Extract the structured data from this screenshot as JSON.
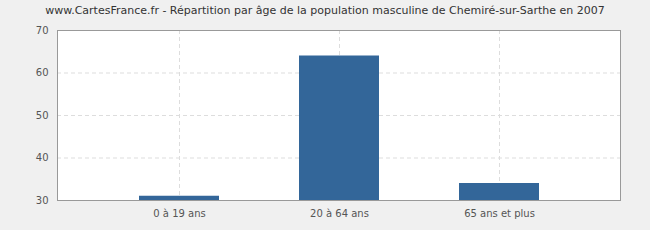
{
  "chart_data": {
    "type": "bar",
    "title": "www.CartesFrance.fr - Répartition par âge de la population masculine de Chemiré-sur-Sarthe en 2007",
    "categories": [
      "0 à 19 ans",
      "20 à 64 ans",
      "65 ans et plus"
    ],
    "values": [
      31,
      64,
      34
    ],
    "color": "#336699",
    "ylim": [
      30,
      70
    ],
    "yticks": [
      30,
      40,
      50,
      60,
      70
    ],
    "grid": true
  }
}
